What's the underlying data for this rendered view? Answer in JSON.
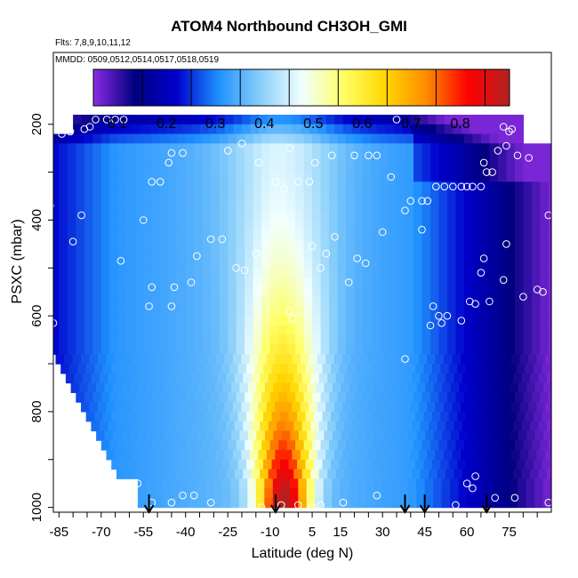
{
  "chart_data": {
    "type": "heatmap",
    "title": "ATOM4 Northbound CH3OH_GMI",
    "flights_label": "Flts: 7,8,9,10,11,12",
    "dates_label": "MMDD: 0509,0512,0514,0517,0518,0519",
    "xlabel": "Latitude (deg N)",
    "ylabel": "PSXC (mbar)",
    "x_ticks": [
      "-85",
      "-70",
      "-55",
      "-40",
      "-25",
      "-10",
      "5",
      "15",
      "30",
      "45",
      "60",
      "75"
    ],
    "y_ticks": [
      "200",
      "400",
      "600",
      "800",
      "1000"
    ],
    "xlim": [
      -87,
      90
    ],
    "ylim": [
      1010,
      50
    ],
    "y_reversed": true,
    "colorbar": {
      "ticks": [
        "0.1",
        "0.2",
        "0.3",
        "0.4",
        "0.5",
        "0.6",
        "0.7",
        "0.8"
      ],
      "range": [
        0,
        0.85
      ],
      "colors": [
        "#8A2BE2",
        "#000080",
        "#0000CD",
        "#1E90FF",
        "#87CEFA",
        "#F0FFFF",
        "#FFFF66",
        "#FFD700",
        "#FF8C00",
        "#FF0000",
        "#B22222"
      ]
    },
    "arrows_lat": [
      -53,
      -8,
      38,
      45,
      67
    ],
    "observations": [
      {
        "lat": -84,
        "p": 220
      },
      {
        "lat": -81,
        "p": 215
      },
      {
        "lat": -76,
        "p": 210
      },
      {
        "lat": -72,
        "p": 190
      },
      {
        "lat": -68,
        "p": 190
      },
      {
        "lat": -65,
        "p": 190
      },
      {
        "lat": -62,
        "p": 190
      },
      {
        "lat": -74,
        "p": 205
      },
      {
        "lat": -45,
        "p": 260
      },
      {
        "lat": -41,
        "p": 260
      },
      {
        "lat": -46,
        "p": 280
      },
      {
        "lat": -52,
        "p": 320
      },
      {
        "lat": -49,
        "p": 320
      },
      {
        "lat": -25,
        "p": 255
      },
      {
        "lat": -20,
        "p": 240
      },
      {
        "lat": -14,
        "p": 280
      },
      {
        "lat": -8,
        "p": 320
      },
      {
        "lat": -5,
        "p": 335
      },
      {
        "lat": 0,
        "p": 320
      },
      {
        "lat": 4,
        "p": 320
      },
      {
        "lat": -3,
        "p": 250
      },
      {
        "lat": 6,
        "p": 280
      },
      {
        "lat": 12,
        "p": 265
      },
      {
        "lat": 20,
        "p": 265
      },
      {
        "lat": 25,
        "p": 265
      },
      {
        "lat": 28,
        "p": 265
      },
      {
        "lat": 35,
        "p": 190
      },
      {
        "lat": 38,
        "p": 380
      },
      {
        "lat": 40,
        "p": 360
      },
      {
        "lat": 44,
        "p": 360
      },
      {
        "lat": 46,
        "p": 360
      },
      {
        "lat": 49,
        "p": 330
      },
      {
        "lat": 52,
        "p": 330
      },
      {
        "lat": 55,
        "p": 330
      },
      {
        "lat": 58,
        "p": 330
      },
      {
        "lat": 60,
        "p": 330
      },
      {
        "lat": 62,
        "p": 330
      },
      {
        "lat": 65,
        "p": 330
      },
      {
        "lat": 66,
        "p": 280
      },
      {
        "lat": 67,
        "p": 300
      },
      {
        "lat": 69,
        "p": 300
      },
      {
        "lat": 71,
        "p": 255
      },
      {
        "lat": 78,
        "p": 265
      },
      {
        "lat": 82,
        "p": 270
      },
      {
        "lat": 74,
        "p": 245
      },
      {
        "lat": 75,
        "p": 215
      },
      {
        "lat": 73,
        "p": 205
      },
      {
        "lat": 76,
        "p": 210
      },
      {
        "lat": -88,
        "p": 370
      },
      {
        "lat": -77,
        "p": 390
      },
      {
        "lat": -55,
        "p": 400
      },
      {
        "lat": -80,
        "p": 445
      },
      {
        "lat": -63,
        "p": 485
      },
      {
        "lat": -53,
        "p": 580
      },
      {
        "lat": -52,
        "p": 540
      },
      {
        "lat": -45,
        "p": 580
      },
      {
        "lat": -44,
        "p": 540
      },
      {
        "lat": -36,
        "p": 475
      },
      {
        "lat": -38,
        "p": 530
      },
      {
        "lat": -31,
        "p": 440
      },
      {
        "lat": -27,
        "p": 440
      },
      {
        "lat": -22,
        "p": 500
      },
      {
        "lat": -19,
        "p": 505
      },
      {
        "lat": -15,
        "p": 470
      },
      {
        "lat": -11,
        "p": 490
      },
      {
        "lat": -13,
        "p": 545
      },
      {
        "lat": -5,
        "p": 410
      },
      {
        "lat": -3,
        "p": 590
      },
      {
        "lat": -2,
        "p": 605
      },
      {
        "lat": 5,
        "p": 455
      },
      {
        "lat": 8,
        "p": 500
      },
      {
        "lat": 10,
        "p": 470
      },
      {
        "lat": 13,
        "p": 435
      },
      {
        "lat": 18,
        "p": 530
      },
      {
        "lat": 21,
        "p": 480
      },
      {
        "lat": 24,
        "p": 490
      },
      {
        "lat": 30,
        "p": 425
      },
      {
        "lat": 38,
        "p": 690
      },
      {
        "lat": 48,
        "p": 580
      },
      {
        "lat": 47,
        "p": 620
      },
      {
        "lat": 51,
        "p": 615
      },
      {
        "lat": 53,
        "p": 600
      },
      {
        "lat": 58,
        "p": 610
      },
      {
        "lat": 61,
        "p": 570
      },
      {
        "lat": 63,
        "p": 575
      },
      {
        "lat": 65,
        "p": 510
      },
      {
        "lat": 66,
        "p": 480
      },
      {
        "lat": 68,
        "p": 570
      },
      {
        "lat": 73,
        "p": 525
      },
      {
        "lat": 74,
        "p": 450
      },
      {
        "lat": 80,
        "p": 560
      },
      {
        "lat": 85,
        "p": 545
      },
      {
        "lat": 87,
        "p": 550
      },
      {
        "lat": 89,
        "p": 390
      },
      {
        "lat": -87,
        "p": 615
      },
      {
        "lat": -84,
        "p": 810
      },
      {
        "lat": -57,
        "p": 950
      },
      {
        "lat": -52,
        "p": 990
      },
      {
        "lat": -45,
        "p": 990
      },
      {
        "lat": -41,
        "p": 975
      },
      {
        "lat": -37,
        "p": 975
      },
      {
        "lat": -31,
        "p": 990
      },
      {
        "lat": -13,
        "p": 1000
      },
      {
        "lat": -6,
        "p": 995
      },
      {
        "lat": 0,
        "p": 995
      },
      {
        "lat": 5,
        "p": 1000
      },
      {
        "lat": 8,
        "p": 995
      },
      {
        "lat": 16,
        "p": 990
      },
      {
        "lat": 28,
        "p": 975
      },
      {
        "lat": 56,
        "p": 995
      },
      {
        "lat": 60,
        "p": 950
      },
      {
        "lat": 62,
        "p": 960
      },
      {
        "lat": 63,
        "p": 935
      },
      {
        "lat": 70,
        "p": 980
      },
      {
        "lat": 77,
        "p": 980
      },
      {
        "lat": 89,
        "p": 990
      },
      {
        "lat": 50,
        "p": 600
      },
      {
        "lat": 33,
        "p": 310
      },
      {
        "lat": 44,
        "p": 420
      }
    ]
  }
}
